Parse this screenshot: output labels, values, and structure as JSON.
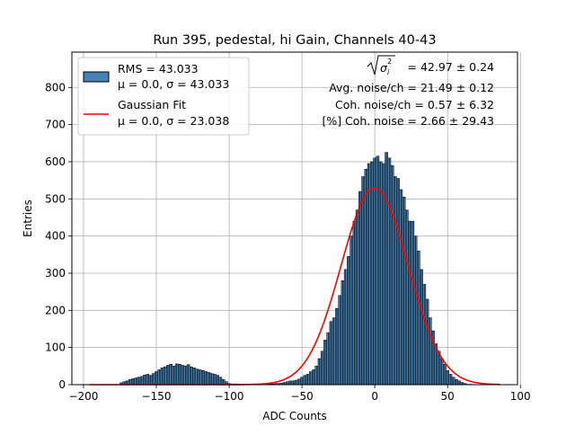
{
  "chart_data": {
    "type": "bar",
    "title": "Run 395, pedestal, hi Gain, Channels 40-43",
    "xlabel": "ADC Counts",
    "ylabel": "Entries",
    "xlim": [
      -208,
      98
    ],
    "ylim": [
      0,
      895
    ],
    "xticks": [
      -200,
      -150,
      -100,
      -50,
      0,
      50,
      100
    ],
    "yticks": [
      0,
      100,
      200,
      300,
      400,
      500,
      600,
      700,
      800
    ],
    "grid": true,
    "legend_placement": "top-left",
    "legend": [
      {
        "line1": "RMS = 43.033",
        "line2": "μ = 0.0, σ = 43.033",
        "kind": "histogram",
        "color": "#4682b4"
      },
      {
        "line1": "Gaussian Fit",
        "line2": "μ = 0.0, σ = 23.038",
        "kind": "line",
        "color": "#ff0000"
      }
    ],
    "annotations": {
      "sigma_sum": "= 42.97 ± 0.24",
      "avg_noise": "Avg. noise/ch = 21.49 ± 0.12",
      "coh_noise": "Coh. noise/ch = 0.57 ± 6.32",
      "coh_noise_pct": "[%] Coh. noise = 2.66 ± 29.43"
    },
    "histogram": {
      "name": "RMS = 43.033",
      "color": "#4682b4",
      "edge_color": "#000000",
      "bin_width": 1,
      "bin_centers": [
        -174,
        -172,
        -170,
        -168,
        -166,
        -164,
        -162,
        -160,
        -158,
        -156,
        -154,
        -152,
        -150,
        -148,
        -146,
        -144,
        -142,
        -140,
        -138,
        -136,
        -134,
        -132,
        -130,
        -128,
        -126,
        -124,
        -122,
        -120,
        -118,
        -116,
        -114,
        -112,
        -110,
        -108,
        -106,
        -104,
        -102,
        -100,
        -98,
        -96,
        -94,
        -92,
        -90,
        -88,
        -86,
        -84,
        -82,
        -80,
        -78,
        -76,
        -74,
        -72,
        -70,
        -68,
        -66,
        -64,
        -62,
        -60,
        -58,
        -56,
        -54,
        -52,
        -50,
        -48,
        -46,
        -44,
        -42,
        -40,
        -38,
        -36,
        -34,
        -32,
        -30,
        -28,
        -26,
        -24,
        -22,
        -20,
        -18,
        -16,
        -14,
        -12,
        -10,
        -8,
        -6,
        -4,
        -2,
        0,
        2,
        4,
        6,
        8,
        10,
        12,
        14,
        16,
        18,
        20,
        22,
        24,
        26,
        28,
        30,
        32,
        34,
        36,
        38,
        40,
        42,
        44,
        46,
        48,
        50,
        52,
        54,
        56,
        58,
        60,
        62,
        64,
        66,
        68,
        70
      ],
      "values": [
        5,
        8,
        10,
        14,
        16,
        18,
        20,
        22,
        26,
        28,
        25,
        30,
        35,
        40,
        45,
        48,
        52,
        55,
        50,
        56,
        55,
        52,
        50,
        54,
        48,
        45,
        42,
        40,
        38,
        35,
        33,
        30,
        28,
        25,
        20,
        14,
        8,
        3,
        2,
        2,
        2,
        1,
        1,
        1,
        1,
        1,
        1,
        1,
        0,
        0,
        1,
        2,
        2,
        3,
        3,
        4,
        6,
        8,
        10,
        10,
        12,
        15,
        20,
        25,
        28,
        35,
        40,
        50,
        70,
        90,
        120,
        140,
        170,
        180,
        205,
        240,
        280,
        310,
        345,
        400,
        440,
        470,
        520,
        560,
        580,
        595,
        600,
        610,
        615,
        600,
        595,
        625,
        610,
        590,
        560,
        555,
        525,
        505,
        470,
        440,
        440,
        400,
        360,
        310,
        270,
        230,
        180,
        145,
        110,
        90,
        70,
        55,
        38,
        28,
        20,
        14,
        10,
        6,
        3,
        1,
        1
      ]
    },
    "gaussian_fit": {
      "name": "Gaussian Fit",
      "color": "#ff0000",
      "mu": 0.0,
      "sigma": 23.038,
      "peak": 530,
      "x_range": [
        -196,
        86
      ]
    }
  }
}
